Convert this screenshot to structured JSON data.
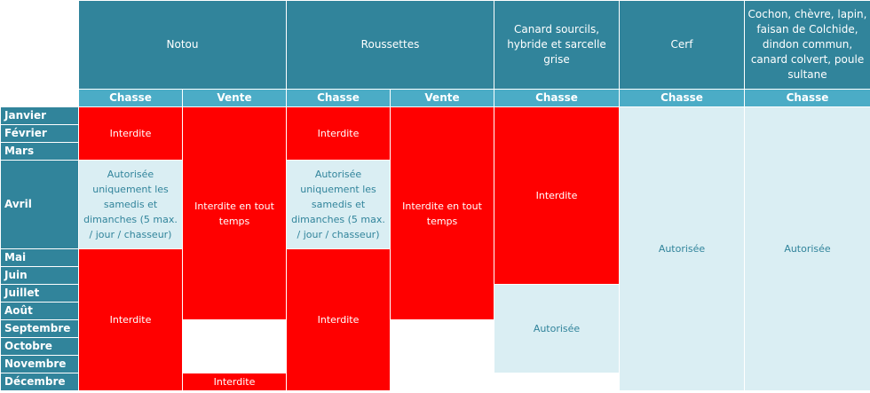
{
  "headers": {
    "notou": "Notou",
    "roussettes": "Roussettes",
    "canard": "Canard sourcils, hybride et sarcelle grise",
    "cerf": "Cerf",
    "cochon": "Cochon, chèvre, lapin, faisan de Colchide, dindon commun, canard colvert, poule sultane"
  },
  "sub": {
    "chasse": "Chasse",
    "vente": "Vente"
  },
  "months": [
    "Janvier",
    "Février",
    "Mars",
    "Avril",
    "Mai",
    "Juin",
    "Juillet",
    "Août",
    "Septembre",
    "Octobre",
    "Novembre",
    "Décembre"
  ],
  "cells": {
    "interdite": "Interdite",
    "autorisee": "Autorisée",
    "weekend": "Autorisée uniquement les samedis et dimanches (5 max. / jour / chasseur)",
    "toujours": "Interdite en tout temps"
  },
  "colors": {
    "header_dark": "#31849b",
    "header_light": "#4bacc6",
    "forbidden": "#ff0000",
    "allowed": "#daeef3"
  }
}
